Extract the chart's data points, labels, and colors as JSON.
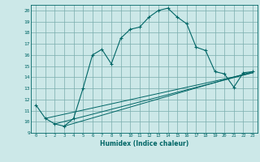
{
  "xlabel": "Humidex (Indice chaleur)",
  "bg_color": "#cce8e8",
  "grid_color": "#7aadad",
  "line_color": "#006666",
  "xlim": [
    -0.5,
    23.5
  ],
  "ylim": [
    9,
    20.5
  ],
  "xticks": [
    0,
    1,
    2,
    3,
    4,
    5,
    6,
    7,
    8,
    9,
    10,
    11,
    12,
    13,
    14,
    15,
    16,
    17,
    18,
    19,
    20,
    21,
    22,
    23
  ],
  "yticks": [
    9,
    10,
    11,
    12,
    13,
    14,
    15,
    16,
    17,
    18,
    19,
    20
  ],
  "main_line": {
    "x": [
      0,
      1,
      2,
      3,
      4,
      5,
      6,
      7,
      8,
      9,
      10,
      11,
      12,
      13,
      14,
      15,
      16,
      17,
      18,
      19,
      20,
      21,
      22,
      23
    ],
    "y": [
      11.5,
      10.3,
      9.8,
      9.6,
      10.3,
      13.0,
      16.0,
      16.5,
      15.2,
      17.5,
      18.3,
      18.5,
      19.4,
      20.0,
      20.2,
      19.4,
      18.8,
      16.7,
      16.4,
      14.5,
      14.3,
      13.1,
      14.4,
      14.5
    ]
  },
  "diag_lines": [
    {
      "x": [
        1,
        23
      ],
      "y": [
        10.3,
        14.4
      ]
    },
    {
      "x": [
        2,
        23
      ],
      "y": [
        9.8,
        14.4
      ]
    },
    {
      "x": [
        3,
        23
      ],
      "y": [
        9.6,
        14.5
      ]
    }
  ]
}
